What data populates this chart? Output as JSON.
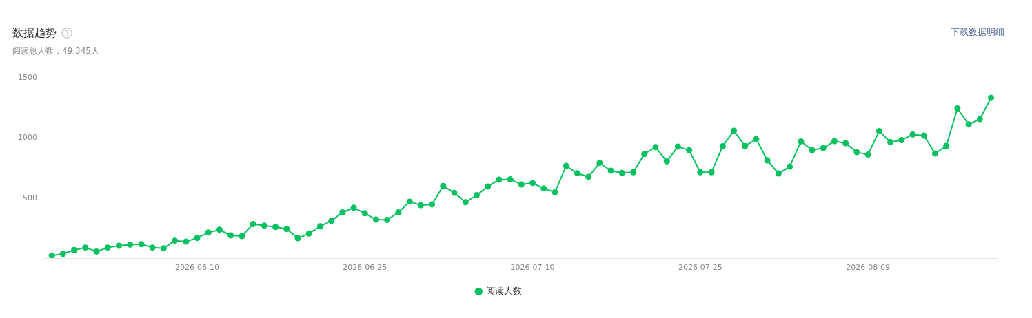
{
  "chart_data": {
    "type": "line",
    "title": "数据趋势",
    "subtitle": "阅读总人数：49,345人",
    "annotations": [
      "下载数据明细"
    ],
    "x": [
      "2026-05-28",
      "2026-05-29",
      "2026-05-30",
      "2026-05-31",
      "2026-06-01",
      "2026-06-02",
      "2026-06-03",
      "2026-06-04",
      "2026-06-05",
      "2026-06-06",
      "2026-06-07",
      "2026-06-08",
      "2026-06-09",
      "2026-06-10",
      "2026-06-11",
      "2026-06-12",
      "2026-06-13",
      "2026-06-14",
      "2026-06-15",
      "2026-06-16",
      "2026-06-17",
      "2026-06-18",
      "2026-06-19",
      "2026-06-20",
      "2026-06-21",
      "2026-06-22",
      "2026-06-23",
      "2026-06-24",
      "2026-06-25",
      "2026-06-26",
      "2026-06-27",
      "2026-06-28",
      "2026-06-29",
      "2026-06-30",
      "2026-07-01",
      "2026-07-02",
      "2026-07-03",
      "2026-07-04",
      "2026-07-05",
      "2026-07-06",
      "2026-07-07",
      "2026-07-08",
      "2026-07-09",
      "2026-07-10",
      "2026-07-11",
      "2026-07-12",
      "2026-07-13",
      "2026-07-14",
      "2026-07-15",
      "2026-07-16",
      "2026-07-17",
      "2026-07-18",
      "2026-07-19",
      "2026-07-20",
      "2026-07-21",
      "2026-07-22",
      "2026-07-23",
      "2026-07-24",
      "2026-07-25",
      "2026-07-26",
      "2026-07-27",
      "2026-07-28",
      "2026-07-29",
      "2026-07-30",
      "2026-07-31",
      "2026-08-01",
      "2026-08-02",
      "2026-08-03",
      "2026-08-04",
      "2026-08-05",
      "2026-08-06",
      "2026-08-07",
      "2026-08-08",
      "2026-08-09",
      "2026-08-10",
      "2026-08-11",
      "2026-08-12",
      "2026-08-13",
      "2026-08-14",
      "2026-08-15",
      "2026-08-16",
      "2026-08-17",
      "2026-08-18",
      "2026-08-19",
      "2026-08-20"
    ],
    "xlim": [
      "2026-05-27T06:00",
      "2026-08-20T14:00"
    ],
    "xticks": [
      "2026-06-10",
      "2026-06-25",
      "2026-07-10",
      "2026-07-25",
      "2026-08-09"
    ],
    "ylim": [
      0,
      1500
    ],
    "yticks": [
      {
        "value": 0,
        "label": null
      },
      500,
      1000,
      1500
    ],
    "series": [
      {
        "name": "阅读人数",
        "color": "#07c160",
        "values": [
          21,
          36,
          67,
          88,
          55,
          88,
          103,
          112,
          116,
          88,
          82,
          145,
          137,
          168,
          213,
          236,
          189,
          183,
          284,
          270,
          259,
          242,
          166,
          204,
          265,
          310,
          381,
          419,
          373,
          320,
          318,
          381,
          470,
          440,
          447,
          600,
          543,
          465,
          524,
          596,
          653,
          655,
          613,
          625,
          579,
          548,
          767,
          706,
          676,
          792,
          727,
          708,
          714,
          866,
          923,
          805,
          927,
          897,
          714,
          714,
          931,
          1059,
          932,
          990,
          813,
          704,
          761,
          971,
          899,
          916,
          973,
          956,
          881,
          861,
          1057,
          965,
          982,
          1028,
          1019,
          870,
          933,
          1245,
          1112,
          1156,
          1333
        ]
      }
    ],
    "grid": "y",
    "legend": "bottom",
    "marker": "circle",
    "line_style": "solid"
  }
}
